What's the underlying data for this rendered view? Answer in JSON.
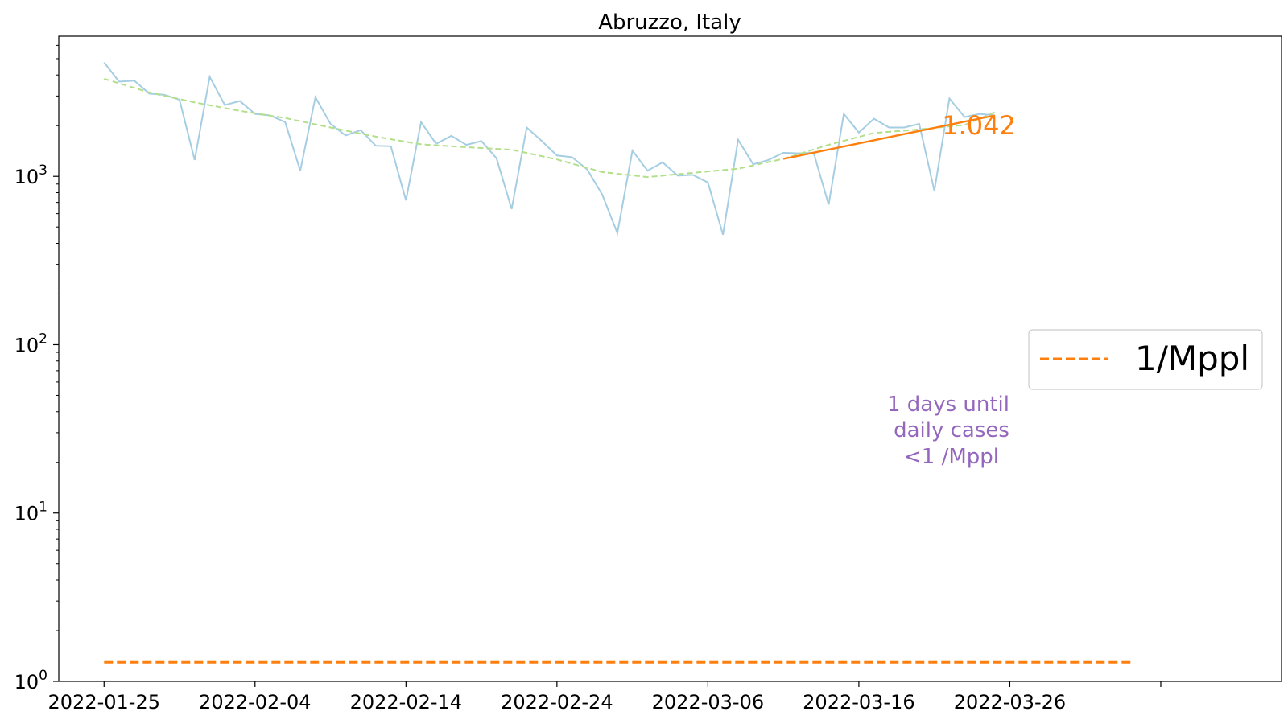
{
  "chart_data": {
    "type": "line",
    "title": "Abruzzo, Italy",
    "xlabel": "",
    "ylabel": "",
    "y_scale": "log",
    "ylim": [
      1,
      6800
    ],
    "xlim": [
      "2022-01-22",
      "2022-04-13"
    ],
    "x_tick_labels": [
      "2022-01-25",
      "2022-02-04",
      "2022-02-14",
      "2022-02-24",
      "2022-03-06",
      "2022-03-16",
      "2022-03-26"
    ],
    "y_tick_labels": [
      {
        "base": "10",
        "exp": "0",
        "value": 1
      },
      {
        "base": "10",
        "exp": "1",
        "value": 10
      },
      {
        "base": "10",
        "exp": "2",
        "value": 100
      },
      {
        "base": "10",
        "exp": "3",
        "value": 1000
      }
    ],
    "grid": false,
    "legend_position": "center-right",
    "legend": [
      {
        "label": "1/Mppl",
        "color": "#ff7f0e",
        "style": "dashed"
      }
    ],
    "series": [
      {
        "color": "#a6cee3",
        "style": "solid",
        "x": [
          "2022-01-25",
          "2022-01-26",
          "2022-01-27",
          "2022-01-28",
          "2022-01-29",
          "2022-01-30",
          "2022-01-31",
          "2022-02-01",
          "2022-02-02",
          "2022-02-03",
          "2022-02-04",
          "2022-02-05",
          "2022-02-06",
          "2022-02-07",
          "2022-02-08",
          "2022-02-09",
          "2022-02-10",
          "2022-02-11",
          "2022-02-12",
          "2022-02-13",
          "2022-02-14",
          "2022-02-15",
          "2022-02-16",
          "2022-02-17",
          "2022-02-18",
          "2022-02-19",
          "2022-02-20",
          "2022-02-21",
          "2022-02-22",
          "2022-02-23",
          "2022-02-24",
          "2022-02-25",
          "2022-02-26",
          "2022-02-27",
          "2022-02-28",
          "2022-03-01",
          "2022-03-02",
          "2022-03-03",
          "2022-03-04",
          "2022-03-05",
          "2022-03-06",
          "2022-03-07",
          "2022-03-08",
          "2022-03-09",
          "2022-03-10",
          "2022-03-11",
          "2022-03-12",
          "2022-03-13",
          "2022-03-14",
          "2022-03-15",
          "2022-03-16",
          "2022-03-17",
          "2022-03-18",
          "2022-03-19",
          "2022-03-20",
          "2022-03-21",
          "2022-03-22",
          "2022-03-23",
          "2022-03-24",
          "2022-03-25"
        ],
        "values": [
          4750,
          3650,
          3700,
          3100,
          3050,
          2850,
          1250,
          3900,
          2650,
          2800,
          2350,
          2300,
          2100,
          1080,
          2950,
          2050,
          1750,
          1880,
          1520,
          1510,
          720,
          2100,
          1560,
          1740,
          1540,
          1620,
          1280,
          640,
          1950,
          1620,
          1330,
          1300,
          1100,
          780,
          460,
          1420,
          1080,
          1210,
          1010,
          1020,
          920,
          450,
          1650,
          1180,
          1250,
          1380,
          1370,
          1380,
          680,
          2350,
          1820,
          2200,
          1950,
          1950,
          2050,
          820,
          2900,
          2250,
          2350,
          2300
        ]
      },
      {
        "color": "#b2df8a",
        "style": "dashed",
        "x": [
          "2022-01-25",
          "2022-01-28",
          "2022-01-31",
          "2022-02-03",
          "2022-02-06",
          "2022-02-09",
          "2022-02-12",
          "2022-02-15",
          "2022-02-18",
          "2022-02-21",
          "2022-02-24",
          "2022-02-27",
          "2022-03-02",
          "2022-03-05",
          "2022-03-08",
          "2022-03-11",
          "2022-03-14",
          "2022-03-17",
          "2022-03-20",
          "2022-03-23",
          "2022-03-25"
        ],
        "values": [
          3800,
          3150,
          2750,
          2450,
          2220,
          1950,
          1720,
          1550,
          1490,
          1440,
          1260,
          1060,
          990,
          1050,
          1110,
          1270,
          1540,
          1810,
          1900,
          2020,
          2400
        ]
      },
      {
        "color": "#ff7f0e",
        "style": "solid",
        "x": [
          "2022-03-11",
          "2022-03-25"
        ],
        "values": [
          1270,
          2300
        ]
      },
      {
        "color": "#ff7f0e",
        "style": "dashed",
        "x": [
          "2022-01-25",
          "2022-04-03"
        ],
        "values": [
          1.3,
          1.3
        ]
      }
    ],
    "annotations": [
      {
        "text": "1.042",
        "color": "#ff7f0e"
      },
      {
        "lines": [
          "1 days until",
          "daily cases",
          "<1 /Mppl"
        ],
        "color": "#9467bd"
      }
    ]
  }
}
